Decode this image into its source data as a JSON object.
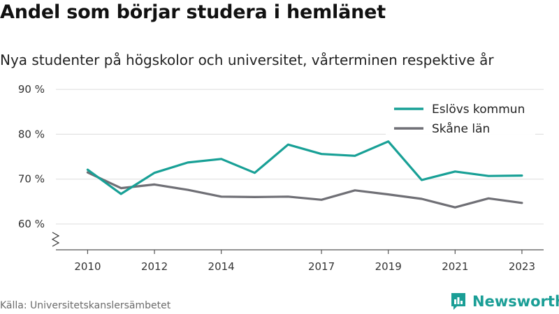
{
  "title": "Andel som börjar studera i hemlänet",
  "subtitle": "Nya studenter på högskolor och universitet, vårterminen respektive år",
  "source": "Källa: Universitetskanslersämbetet",
  "brand": {
    "name": "Newsworthy",
    "icon": "newsworthy-logo-icon",
    "color": "#1a9e96"
  },
  "chart_data": {
    "type": "line",
    "title": "Andel som börjar studera i hemlänet",
    "subtitle": "Nya studenter på högskolor och universitet, vårterminen respektive år",
    "x": [
      2010,
      2011,
      2012,
      2013,
      2014,
      2015,
      2016,
      2017,
      2018,
      2019,
      2020,
      2021,
      2022,
      2023
    ],
    "x_ticks": [
      2010,
      2012,
      2014,
      2017,
      2019,
      2021,
      2023
    ],
    "y_ticks": [
      60,
      70,
      80,
      90
    ],
    "y_tick_labels": [
      "60 %",
      "70 %",
      "80 %",
      "90 %"
    ],
    "ylim": [
      55,
      90
    ],
    "y_axis_break": true,
    "grid": true,
    "legend_position": "top-right",
    "series": [
      {
        "name": "Eslövs kommun",
        "color": "#18a096",
        "values": [
          72.1,
          66.7,
          71.4,
          73.7,
          74.5,
          71.4,
          77.7,
          75.6,
          75.2,
          78.4,
          69.8,
          71.7,
          70.7,
          70.8
        ]
      },
      {
        "name": "Skåne län",
        "color": "#6f6f75",
        "values": [
          71.5,
          68.0,
          68.8,
          67.6,
          66.1,
          66.0,
          66.1,
          65.4,
          67.5,
          66.6,
          65.6,
          63.7,
          65.7,
          64.7
        ]
      }
    ]
  }
}
